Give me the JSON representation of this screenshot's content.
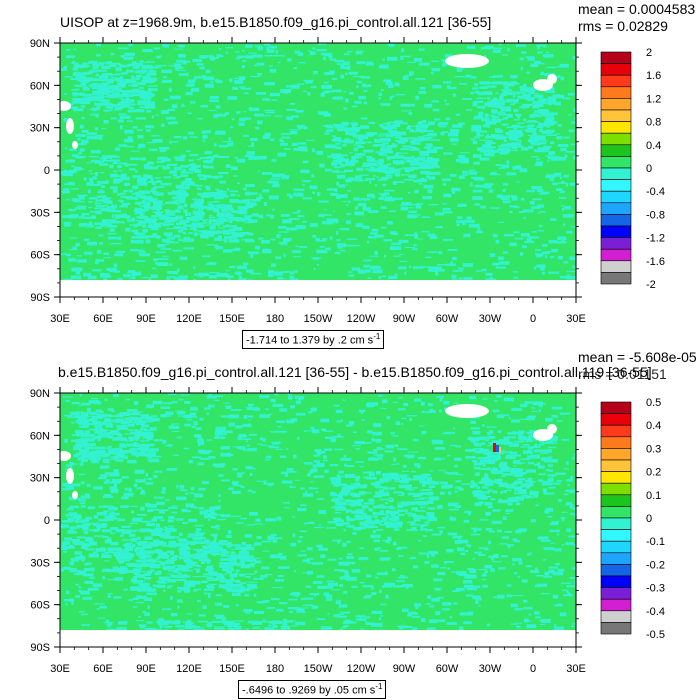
{
  "colors": {
    "field_green": "#33e566",
    "cyan": "#33f2d2",
    "land_white": "#ffffff"
  },
  "chart_data": [
    {
      "type": "heatmap",
      "title": "UISOP at z=1968.9m, b.e15.B1850.f09_g16.pi_control.all.121 [36-55]",
      "mean_label": "mean = 0.0004583",
      "rms_label": "rms = 0.02829",
      "contour_note": "-1.714 to 1.379 by .2 cm s",
      "contour_note_sup": "-1",
      "xlim": [
        30,
        390
      ],
      "ylim": [
        -90,
        90
      ],
      "x_ticks": [
        "30E",
        "60E",
        "90E",
        "120E",
        "150E",
        "180",
        "150W",
        "120W",
        "90W",
        "60W",
        "30W",
        "0",
        "30E"
      ],
      "y_ticks": [
        "90N",
        "60N",
        "30N",
        "0",
        "30S",
        "60S",
        "90S"
      ],
      "colorbar": {
        "labels": [
          "2",
          "1.6",
          "1.2",
          "0.8",
          "0.4",
          "0",
          "-0.4",
          "-0.8",
          "-1.2",
          "-1.6",
          "-2"
        ],
        "colors": [
          "#b5001a",
          "#e8000b",
          "#ff3b1c",
          "#ff7a1d",
          "#ffa62b",
          "#ffc43a",
          "#ffe600",
          "#7ede00",
          "#1ec41e",
          "#33e566",
          "#33f2d2",
          "#33f7ff",
          "#1fd6ff",
          "#1ea6ff",
          "#1466e6",
          "#0000ff",
          "#7a1fd6",
          "#d11fd1",
          "#cfcfcf",
          "#777777"
        ]
      }
    },
    {
      "type": "heatmap",
      "title": "b.e15.B1850.f09_g16.pi_control.all.121 [36-55] - b.e15.B1850.f09_g16.pi_control.all.119 [36-55]",
      "mean_label": "mean = -5.608e-05",
      "rms_label": "rms = 0.01151",
      "contour_note": "-.6496 to .9269 by .05 cm s",
      "contour_note_sup": "-1",
      "xlim": [
        30,
        390
      ],
      "ylim": [
        -90,
        90
      ],
      "x_ticks": [
        "30E",
        "60E",
        "90E",
        "120E",
        "150E",
        "180",
        "150W",
        "120W",
        "90W",
        "60W",
        "30W",
        "0",
        "30E"
      ],
      "y_ticks": [
        "90N",
        "60N",
        "30N",
        "0",
        "30S",
        "60S",
        "90S"
      ],
      "colorbar": {
        "labels": [
          "0.5",
          "0.4",
          "0.3",
          "0.2",
          "0.1",
          "0",
          "-0.1",
          "-0.2",
          "-0.3",
          "-0.4",
          "-0.5"
        ],
        "colors": [
          "#b5001a",
          "#e8000b",
          "#ff3b1c",
          "#ff7a1d",
          "#ffa62b",
          "#ffc43a",
          "#ffe600",
          "#7ede00",
          "#1ec41e",
          "#33e566",
          "#33f2d2",
          "#33f7ff",
          "#1fd6ff",
          "#1ea6ff",
          "#1466e6",
          "#0000ff",
          "#7a1fd6",
          "#d11fd1",
          "#cfcfcf",
          "#777777"
        ]
      }
    }
  ]
}
